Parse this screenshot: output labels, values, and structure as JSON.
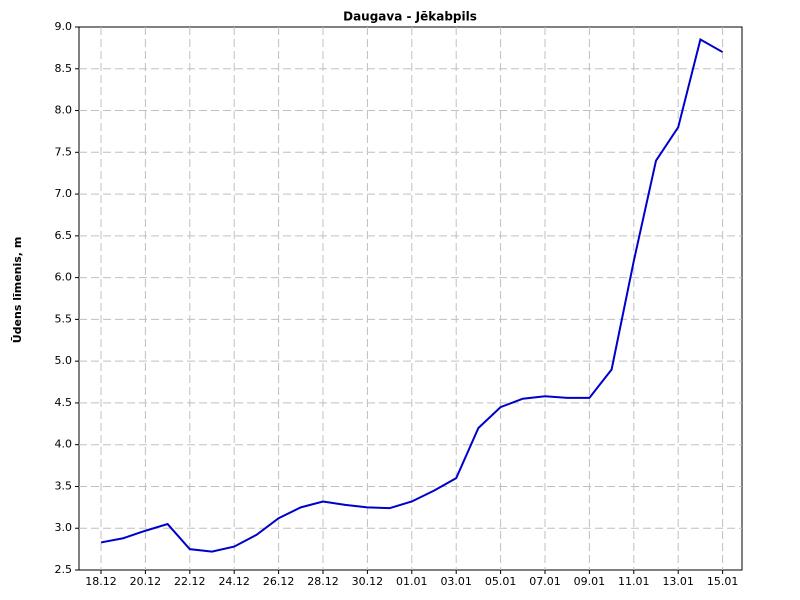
{
  "chart_data": {
    "type": "line",
    "title": "Daugava - Jēkabpils",
    "y_label": "Ūdens līmenis, m",
    "x": [
      "18.12",
      "19.12",
      "20.12",
      "21.12",
      "22.12",
      "23.12",
      "24.12",
      "25.12",
      "26.12",
      "27.12",
      "28.12",
      "29.12",
      "30.12",
      "31.12",
      "01.01",
      "02.01",
      "03.01",
      "04.01",
      "05.01",
      "06.01",
      "07.01",
      "08.01",
      "09.01",
      "10.01",
      "11.01",
      "12.01",
      "13.01",
      "14.01",
      "15.01"
    ],
    "series": [
      {
        "name": "Daugava - Jēkabpils",
        "color": "#0000cc",
        "values": [
          2.83,
          2.88,
          2.97,
          3.05,
          2.75,
          2.72,
          2.78,
          2.92,
          3.12,
          3.25,
          3.32,
          3.28,
          3.25,
          3.24,
          3.32,
          3.45,
          3.6,
          4.2,
          4.45,
          4.55,
          4.58,
          4.56,
          4.56,
          4.9,
          6.2,
          7.4,
          7.8,
          8.85,
          8.7
        ]
      }
    ],
    "ylim": [
      2.5,
      9.0
    ],
    "yticks": [
      2.5,
      {
        "value": 3,
        "label": "3.0"
      },
      3.5,
      {
        "value": 4,
        "label": "4.0"
      },
      4.5,
      {
        "value": 5,
        "label": "5.0"
      },
      5.5,
      {
        "value": 6,
        "label": "6.0"
      },
      6.5,
      {
        "value": 7,
        "label": "7.0"
      },
      7.5,
      {
        "value": 8,
        "label": "8.0"
      },
      8.5,
      {
        "value": 9,
        "label": "9.0"
      }
    ],
    "grid": true
  }
}
